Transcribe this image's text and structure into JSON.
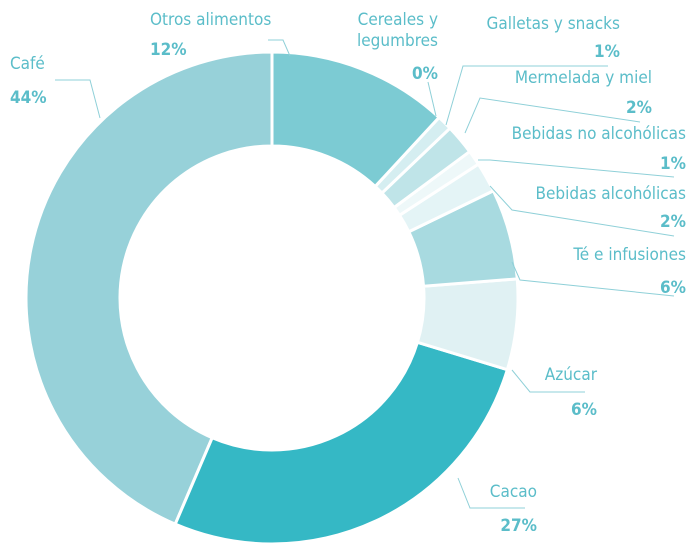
{
  "chart_data": {
    "type": "donut",
    "categories": [
      "Otros alimentos",
      "Cereales y legumbres",
      "Galletas y snacks",
      "Mermelada y miel",
      "Bebidas no alcohólicas",
      "Bebidas alcohólicas",
      "Té e infusiones",
      "Azúcar",
      "Cacao",
      "Café"
    ],
    "values": [
      12,
      0,
      1,
      2,
      1,
      2,
      6,
      6,
      27,
      44
    ],
    "value_labels": [
      "12%",
      "0%",
      "1%",
      "2%",
      "1%",
      "2%",
      "6%",
      "6%",
      "27%",
      "44%"
    ],
    "colors": [
      "#7ccbd3",
      "#c6e7eb",
      "#d5eef1",
      "#bfe4e8",
      "#eef8f9",
      "#e4f4f6",
      "#a8dae0",
      "#e0f1f3",
      "#35b8c5",
      "#97d1d9"
    ]
  }
}
